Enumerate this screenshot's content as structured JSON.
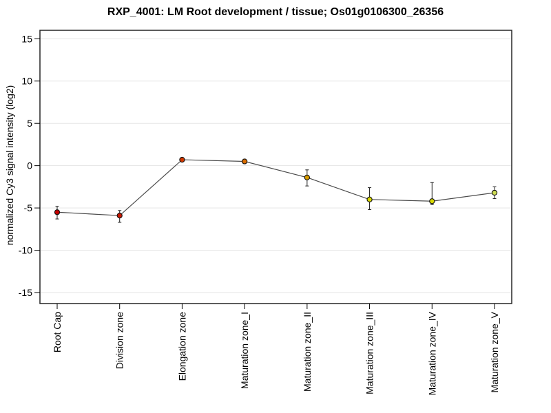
{
  "chart_data": {
    "type": "line",
    "title": "RXP_4001: LM Root development / tissue; Os01g0106300_26356",
    "ylabel": "normalized Cy3 signal intensity (log2)",
    "xlabel": "",
    "categories": [
      "Root Cap",
      "Division zone",
      "Elongation zone",
      "Maturation zone_I",
      "Maturation zone_II",
      "Maturation zone_III",
      "Maturation zone_IV",
      "Maturation zone_V"
    ],
    "values": [
      -5.5,
      -5.9,
      0.7,
      0.5,
      -1.4,
      -4.0,
      -4.2,
      -3.2
    ],
    "error_low": [
      -6.3,
      -6.7,
      0.5,
      0.3,
      -2.4,
      -5.2,
      -4.6,
      -3.9
    ],
    "error_high": [
      -4.8,
      -5.3,
      0.9,
      0.7,
      -0.5,
      -2.6,
      -2.0,
      -2.5
    ],
    "point_colors": [
      "#c40000",
      "#c81600",
      "#d03800",
      "#d86c00",
      "#d89c00",
      "#d6d600",
      "#d8d800",
      "#cfdd55"
    ],
    "yticks": [
      15,
      10,
      5,
      0,
      -5,
      -10,
      -15
    ],
    "ylim": [
      -16.3,
      16.0
    ],
    "grid": "horizontal",
    "legend": "none",
    "colors": {
      "grid": "#e5e5e5",
      "frame": "#262626",
      "line": "#4a4a4a",
      "error_bar": "#1c1c1c",
      "marker_outline": "#111111",
      "tick": "#000000"
    }
  }
}
